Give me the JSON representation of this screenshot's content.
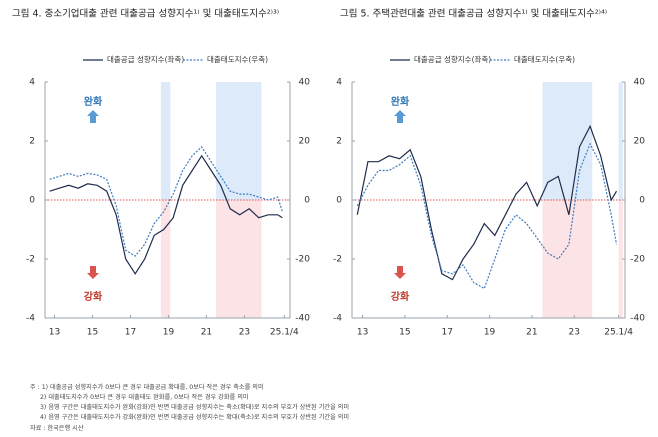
{
  "chart_data": [
    {
      "type": "line",
      "title": "그림 4. 중소기업대출 관련 대출공급 성향지수¹⁾ 및 대출태도지수²⁾³⁾",
      "x": [
        12.75,
        13.25,
        13.75,
        14.25,
        14.75,
        15.25,
        15.75,
        16.25,
        16.75,
        17.25,
        17.75,
        18.25,
        18.75,
        19.25,
        19.75,
        20.25,
        20.75,
        21.25,
        21.75,
        22.25,
        22.75,
        23.25,
        23.75,
        24.25,
        24.75,
        25.0
      ],
      "series": [
        {
          "name": "대출공급 성향지수(좌축)",
          "color": "#1f2d4d",
          "line_style": "solid",
          "values": [
            0.3,
            0.4,
            0.5,
            0.4,
            0.55,
            0.5,
            0.3,
            -0.5,
            -2.0,
            -2.5,
            -2.0,
            -1.2,
            -1.0,
            -0.6,
            0.5,
            1.0,
            1.5,
            1.0,
            0.5,
            -0.3,
            -0.5,
            -0.3,
            -0.6,
            -0.5,
            -0.5,
            -0.6
          ]
        },
        {
          "name": "대출태도지수(우축)",
          "color": "#3d7bbf",
          "line_style": "dotted",
          "axis": "y2",
          "values": [
            7,
            8,
            9,
            8,
            9,
            8.5,
            7,
            -2,
            -17,
            -19,
            -15,
            -8,
            -4,
            2,
            10,
            15,
            18,
            13,
            8,
            3,
            2,
            2,
            1,
            0,
            1,
            -4
          ]
        }
      ],
      "xlim": [
        12.5,
        25.4
      ],
      "xticks": [
        13,
        15,
        17,
        19,
        21,
        23,
        {
          "value": 25.1,
          "label": "25.1/4"
        }
      ],
      "ylim": [
        -4,
        4
      ],
      "yticks": [
        -4,
        -2,
        0,
        2,
        4
      ],
      "y2lim": [
        -40,
        40
      ],
      "y2ticks": [
        -40,
        -20,
        0,
        20,
        40
      ],
      "shaded_x_ranges": [
        [
          18.6,
          19.1
        ],
        [
          21.5,
          23.9
        ]
      ],
      "shade_colors": {
        "above": "#dceaf9",
        "below": "#fbe3e6"
      },
      "annotations": [
        "완화",
        "강화"
      ]
    },
    {
      "type": "line",
      "title": "그림 5. 주택관련대출 관련 대출공급 성향지수¹⁾ 및 대출태도지수²⁾⁴⁾",
      "x": [
        12.75,
        13.25,
        13.75,
        14.25,
        14.75,
        15.25,
        15.75,
        16.25,
        16.75,
        17.25,
        17.75,
        18.25,
        18.75,
        19.25,
        19.75,
        20.25,
        20.75,
        21.25,
        21.75,
        22.25,
        22.75,
        23.25,
        23.75,
        24.25,
        24.75,
        25.0
      ],
      "series": [
        {
          "name": "대출공급 성향지수(좌축)",
          "color": "#1f2d4d",
          "line_style": "solid",
          "values": [
            -0.5,
            1.3,
            1.3,
            1.5,
            1.4,
            1.7,
            0.8,
            -1.0,
            -2.5,
            -2.7,
            -2.0,
            -1.5,
            -0.8,
            -1.2,
            -0.5,
            0.2,
            0.6,
            -0.2,
            0.6,
            0.8,
            -0.5,
            1.8,
            2.5,
            1.5,
            0.0,
            0.3
          ]
        },
        {
          "name": "대출태도지수(우축)",
          "color": "#3d7bbf",
          "line_style": "dotted",
          "axis": "y2",
          "values": [
            -2,
            5,
            10,
            10,
            12,
            15,
            5,
            -12,
            -24,
            -25,
            -22,
            -28,
            -30,
            -20,
            -10,
            -5,
            -8,
            -13,
            -18,
            -20,
            -15,
            10,
            19,
            12,
            -5,
            -15
          ]
        }
      ],
      "xlim": [
        12.5,
        25.4
      ],
      "xticks": [
        13,
        15,
        17,
        19,
        21,
        23,
        {
          "value": 25.1,
          "label": "25.1/4"
        }
      ],
      "ylim": [
        -4,
        4
      ],
      "yticks": [
        -4,
        -2,
        0,
        2,
        4
      ],
      "y2lim": [
        -40,
        40
      ],
      "y2ticks": [
        -40,
        -20,
        0,
        20,
        40
      ],
      "shaded_x_ranges": [
        [
          21.5,
          23.85
        ],
        [
          25.1,
          25.3
        ]
      ],
      "shade_colors": {
        "above": "#dceaf9",
        "below": "#fbe3e6"
      },
      "annotations": [
        "완화",
        "강화"
      ]
    }
  ],
  "notes": [
    "주 : 1) 대출공급 성향지수가 0보다 큰 경우 대출공급 확대를, 0보다 작은 경우 축소를 의미",
    "2) 대출태도지수가 0보다 큰 경우 대출태도 완화를, 0보다 작은 경우 강화를 의미",
    "3) 음영 구간은 대출태도지수가 완화(강화)인 반면 대출공급 성향지수는 축소(확대)로 지수의 부호가 상반된 기간을 의미",
    "4) 음영 구간은 대출태도지수가 강화(완화)인 반면 대출공급 성향지수는 확대(축소)로 지수의 부호가 상반된 기간을 의미",
    "자료 : 한국은행 시산"
  ]
}
